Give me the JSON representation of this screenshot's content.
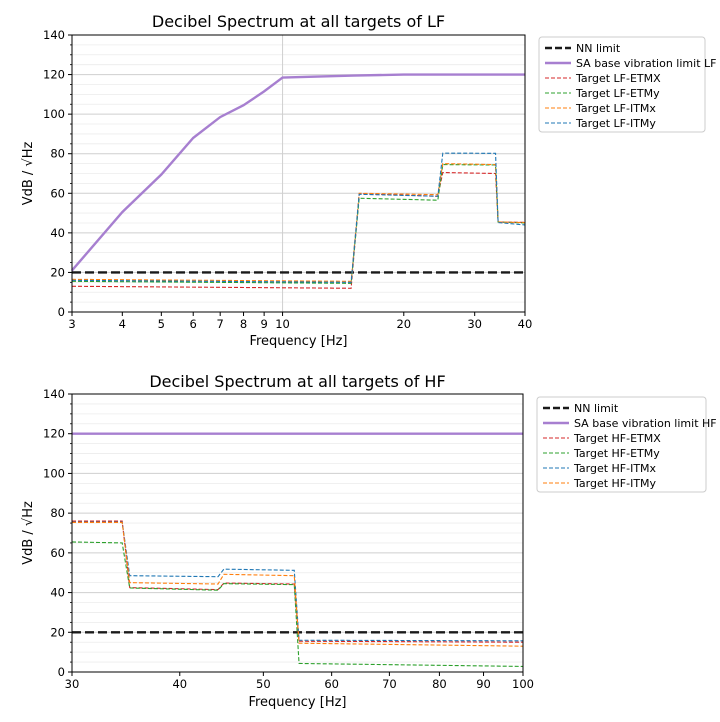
{
  "chart_data": [
    {
      "type": "line",
      "title": "Decibel Spectrum at all targets of LF",
      "xlabel": "Frequency [Hz]",
      "ylabel": "VdB / √Hz",
      "xscale": "log",
      "xlim": [
        3,
        40
      ],
      "ylim": [
        0,
        140
      ],
      "xticks": [
        3,
        4,
        5,
        6,
        7,
        8,
        9,
        10,
        20,
        30,
        40
      ],
      "yticks": [
        0,
        20,
        40,
        60,
        80,
        100,
        120,
        140
      ],
      "grid": true,
      "legend_position": "outside-right",
      "series": [
        {
          "name": "NN limit",
          "color": "#1a1a1a",
          "style": "dashed",
          "x": [
            3,
            40
          ],
          "y": [
            20,
            20
          ]
        },
        {
          "name": "SA base vibration limit LF",
          "color": "#a77fd0",
          "style": "solid",
          "x": [
            3,
            4,
            5,
            6,
            7,
            8,
            9,
            10,
            15,
            20,
            30,
            40
          ],
          "y": [
            21,
            50.5,
            69.5,
            88,
            98.5,
            104.5,
            111.5,
            118.5,
            119.5,
            120,
            120,
            120
          ]
        },
        {
          "name": "Target LF-ETMX",
          "color": "#d62728",
          "style": "dashed",
          "x": [
            3,
            14.8,
            15.5,
            24.3,
            25,
            33.8,
            34.3,
            40
          ],
          "y": [
            13,
            12,
            59.8,
            58.5,
            70.5,
            70,
            45.5,
            45.3
          ]
        },
        {
          "name": "Target LF-ETMy",
          "color": "#2ca02c",
          "style": "dashed",
          "x": [
            3,
            14.8,
            15.5,
            24.3,
            25,
            33.8,
            34.3,
            40
          ],
          "y": [
            15.5,
            14.5,
            57.5,
            56.5,
            74.5,
            74.3,
            45.5,
            45
          ]
        },
        {
          "name": "Target LF-ITMx",
          "color": "#ff7f0e",
          "style": "dashed",
          "x": [
            3,
            14.8,
            15.5,
            24.3,
            25,
            33.8,
            34.3,
            40
          ],
          "y": [
            16.5,
            15.5,
            60,
            59.3,
            75,
            74.5,
            45.5,
            45.2
          ]
        },
        {
          "name": "Target LF-ITMy",
          "color": "#1f77b4",
          "style": "dashed",
          "x": [
            3,
            14.8,
            15.5,
            24.3,
            25,
            33.8,
            34.3,
            40
          ],
          "y": [
            16,
            15,
            59.5,
            58.5,
            80.3,
            80.2,
            45.2,
            44
          ]
        }
      ]
    },
    {
      "type": "line",
      "title": "Decibel Spectrum at all targets of HF",
      "xlabel": "Frequency [Hz]",
      "ylabel": "VdB / √Hz",
      "xscale": "log",
      "xlim": [
        30,
        100
      ],
      "ylim": [
        0,
        140
      ],
      "xticks": [
        30,
        40,
        50,
        60,
        70,
        80,
        90,
        100
      ],
      "yticks": [
        0,
        20,
        40,
        60,
        80,
        100,
        120,
        140
      ],
      "grid": true,
      "legend_position": "outside-right",
      "series": [
        {
          "name": "NN limit",
          "color": "#1a1a1a",
          "style": "dashed",
          "x": [
            30,
            100
          ],
          "y": [
            20,
            20
          ]
        },
        {
          "name": "SA base vibration limit HF",
          "color": "#a77fd0",
          "style": "solid",
          "x": [
            30,
            100
          ],
          "y": [
            120,
            120
          ]
        },
        {
          "name": "Target HF-ETMX",
          "color": "#d62728",
          "style": "dashed",
          "x": [
            30,
            34.3,
            35,
            44.3,
            45,
            54.3,
            55,
            100
          ],
          "y": [
            76,
            76,
            42.5,
            41.5,
            44.8,
            44.3,
            15.5,
            15
          ]
        },
        {
          "name": "Target HF-ETMy",
          "color": "#2ca02c",
          "style": "dashed",
          "x": [
            30,
            34.3,
            35,
            44.3,
            45,
            54.3,
            55,
            100
          ],
          "y": [
            65.5,
            65,
            42.3,
            41.2,
            44.5,
            44,
            4.3,
            2.8
          ]
        },
        {
          "name": "Target HF-ITMx",
          "color": "#1f77b4",
          "style": "dashed",
          "x": [
            30,
            34.3,
            35,
            44.3,
            45,
            54.3,
            55,
            100
          ],
          "y": [
            75.5,
            75.5,
            48.5,
            48,
            51.8,
            51.2,
            16,
            15.7
          ]
        },
        {
          "name": "Target HF-ITMy",
          "color": "#ff7f0e",
          "style": "dashed",
          "x": [
            30,
            34.3,
            35,
            44.3,
            45,
            54.3,
            55,
            100
          ],
          "y": [
            75.3,
            75.3,
            45,
            44.3,
            49.2,
            48.5,
            14.5,
            13
          ]
        }
      ]
    }
  ]
}
